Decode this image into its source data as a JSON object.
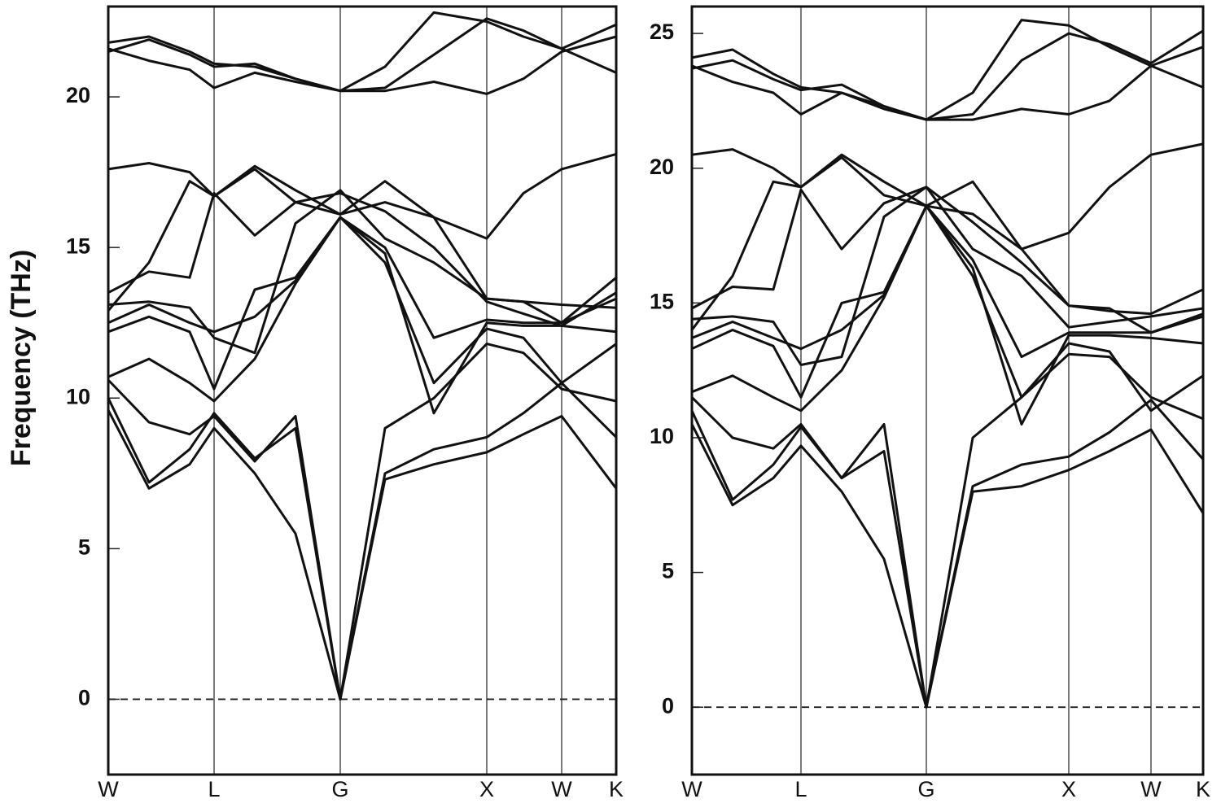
{
  "chart_data": [
    {
      "type": "line",
      "y_label": "Frequency (THz)",
      "color": "#111111",
      "x": [
        0,
        0.5,
        1.0,
        1.3,
        1.8,
        2.3,
        2.85,
        3.4,
        4.0,
        4.65,
        5.1,
        5.57,
        6.24
      ],
      "xlim": [
        0,
        6.24
      ],
      "xticks": [
        {
          "value": 0,
          "label": "W"
        },
        {
          "value": 1.3,
          "label": "L"
        },
        {
          "value": 2.85,
          "label": "G"
        },
        {
          "value": 4.65,
          "label": "X"
        },
        {
          "value": 5.57,
          "label": "W"
        },
        {
          "value": 6.24,
          "label": "K"
        }
      ],
      "ylim": [
        -2.5,
        23
      ],
      "yticks": [
        0,
        5,
        10,
        15,
        20
      ],
      "xgrid": true,
      "zero_line": true,
      "series": [
        {
          "color": "#111111",
          "values": [
            9.6,
            7.0,
            7.8,
            9.0,
            7.5,
            5.5,
            0,
            7.3,
            7.8,
            8.2,
            8.8,
            9.4,
            7.0
          ]
        },
        {
          "color": "#111111",
          "values": [
            10.0,
            7.2,
            8.3,
            9.5,
            8.0,
            9.0,
            0,
            7.5,
            8.3,
            8.7,
            9.5,
            10.5,
            8.7
          ]
        },
        {
          "color": "#111111",
          "values": [
            10.6,
            9.2,
            8.8,
            9.4,
            7.9,
            9.4,
            0,
            9.0,
            10.0,
            11.8,
            11.5,
            10.3,
            9.9
          ]
        },
        {
          "color": "#111111",
          "values": [
            10.7,
            11.3,
            10.5,
            9.9,
            11.3,
            13.8,
            16.0,
            14.5,
            10.5,
            12.3,
            12.0,
            10.5,
            11.8
          ]
        },
        {
          "color": "#111111",
          "values": [
            12.2,
            12.7,
            12.2,
            10.3,
            13.6,
            14.0,
            16.0,
            14.8,
            9.5,
            12.5,
            12.4,
            12.4,
            12.2
          ]
        },
        {
          "color": "#111111",
          "values": [
            12.5,
            13.1,
            12.5,
            12.2,
            12.7,
            13.9,
            16.0,
            15.0,
            12.0,
            12.6,
            12.5,
            12.5,
            13.3
          ]
        },
        {
          "color": "#111111",
          "values": [
            13.1,
            13.2,
            13.0,
            12.0,
            11.5,
            15.8,
            16.9,
            15.3,
            14.5,
            13.3,
            13.2,
            13.1,
            13.0
          ]
        },
        {
          "color": "#111111",
          "values": [
            13.5,
            14.2,
            14.0,
            16.8,
            15.4,
            16.5,
            16.8,
            16.2,
            15.0,
            13.2,
            12.8,
            12.4,
            13.5
          ]
        },
        {
          "color": "#111111",
          "values": [
            12.9,
            14.5,
            17.2,
            16.7,
            17.6,
            16.5,
            16.1,
            17.2,
            16.0,
            15.3,
            16.8,
            17.6,
            18.1
          ]
        },
        {
          "color": "#111111",
          "values": [
            17.6,
            17.8,
            17.5,
            16.7,
            17.7,
            16.9,
            16.1,
            16.5,
            16.0,
            13.3,
            13.2,
            12.5,
            14.0
          ]
        },
        {
          "color": "#111111",
          "values": [
            21.6,
            21.2,
            20.9,
            20.3,
            20.8,
            20.5,
            20.2,
            20.2,
            20.5,
            20.1,
            20.6,
            21.5,
            22.0
          ]
        },
        {
          "color": "#111111",
          "values": [
            21.5,
            21.9,
            21.4,
            21.0,
            21.1,
            20.6,
            20.2,
            21.0,
            22.8,
            22.5,
            22.0,
            21.6,
            20.8
          ]
        },
        {
          "color": "#111111",
          "values": [
            21.8,
            22.0,
            21.5,
            21.1,
            21.0,
            20.6,
            20.2,
            20.3,
            21.4,
            22.6,
            22.2,
            21.6,
            22.4
          ]
        }
      ]
    },
    {
      "type": "line",
      "color": "#111111",
      "x": [
        0,
        0.5,
        1.0,
        1.34,
        1.84,
        2.36,
        2.88,
        3.45,
        4.05,
        4.63,
        5.13,
        5.64,
        6.28
      ],
      "xlim": [
        0,
        6.28
      ],
      "xticks": [
        {
          "value": 0,
          "label": "W"
        },
        {
          "value": 1.34,
          "label": "L"
        },
        {
          "value": 2.88,
          "label": "G"
        },
        {
          "value": 4.63,
          "label": "X"
        },
        {
          "value": 5.64,
          "label": "W"
        },
        {
          "value": 6.28,
          "label": "K"
        }
      ],
      "ylim": [
        -2.5,
        26
      ],
      "yticks": [
        0,
        5,
        10,
        15,
        20,
        25
      ],
      "xgrid": true,
      "zero_line": true,
      "series": [
        {
          "color": "#111111",
          "values": [
            10.5,
            7.5,
            8.5,
            9.7,
            8.0,
            5.5,
            0,
            8.0,
            8.2,
            8.8,
            9.5,
            10.3,
            7.2
          ]
        },
        {
          "color": "#111111",
          "values": [
            11.0,
            7.7,
            9.0,
            10.4,
            8.5,
            9.5,
            0,
            8.2,
            9.0,
            9.3,
            10.2,
            11.4,
            9.2
          ]
        },
        {
          "color": "#111111",
          "values": [
            11.5,
            10.0,
            9.6,
            10.5,
            8.5,
            10.5,
            0,
            10.0,
            11.5,
            13.1,
            13.0,
            11.5,
            10.7
          ]
        },
        {
          "color": "#111111",
          "values": [
            11.7,
            12.3,
            11.5,
            11.0,
            12.5,
            15.2,
            18.6,
            16.0,
            11.5,
            13.5,
            13.2,
            11.0,
            12.3
          ]
        },
        {
          "color": "#111111",
          "values": [
            13.3,
            14.0,
            13.4,
            11.5,
            15.0,
            15.4,
            18.6,
            16.3,
            10.5,
            13.8,
            13.8,
            13.7,
            13.5
          ]
        },
        {
          "color": "#111111",
          "values": [
            13.7,
            14.3,
            13.7,
            13.3,
            14.0,
            15.3,
            18.6,
            16.6,
            13.0,
            13.9,
            13.9,
            13.9,
            14.5
          ]
        },
        {
          "color": "#111111",
          "values": [
            14.4,
            14.5,
            14.3,
            12.7,
            13.0,
            18.2,
            19.3,
            17.0,
            16.0,
            14.1,
            14.3,
            14.5,
            14.8
          ]
        },
        {
          "color": "#111111",
          "values": [
            14.8,
            15.6,
            15.5,
            19.2,
            17.0,
            18.7,
            19.3,
            18.0,
            16.5,
            14.9,
            14.7,
            14.6,
            15.5
          ]
        },
        {
          "color": "#111111",
          "values": [
            14.0,
            16.0,
            19.5,
            19.3,
            20.4,
            19.0,
            18.6,
            19.5,
            17.0,
            17.6,
            19.3,
            20.5,
            20.9
          ]
        },
        {
          "color": "#111111",
          "values": [
            20.5,
            20.7,
            20.0,
            19.3,
            20.5,
            19.5,
            18.6,
            18.3,
            17.0,
            14.9,
            14.8,
            13.9,
            14.6
          ]
        },
        {
          "color": "#111111",
          "values": [
            23.8,
            23.2,
            22.8,
            22.0,
            22.8,
            22.2,
            21.8,
            21.8,
            22.2,
            22.0,
            22.5,
            23.8,
            24.5
          ]
        },
        {
          "color": "#111111",
          "values": [
            23.7,
            24.0,
            23.3,
            22.9,
            23.1,
            22.3,
            21.8,
            22.8,
            25.5,
            25.3,
            24.5,
            23.8,
            23.0
          ]
        },
        {
          "color": "#111111",
          "values": [
            24.1,
            24.4,
            23.5,
            23.0,
            22.8,
            22.3,
            21.8,
            22.0,
            24.0,
            25.0,
            24.6,
            23.9,
            25.1
          ]
        }
      ]
    }
  ]
}
